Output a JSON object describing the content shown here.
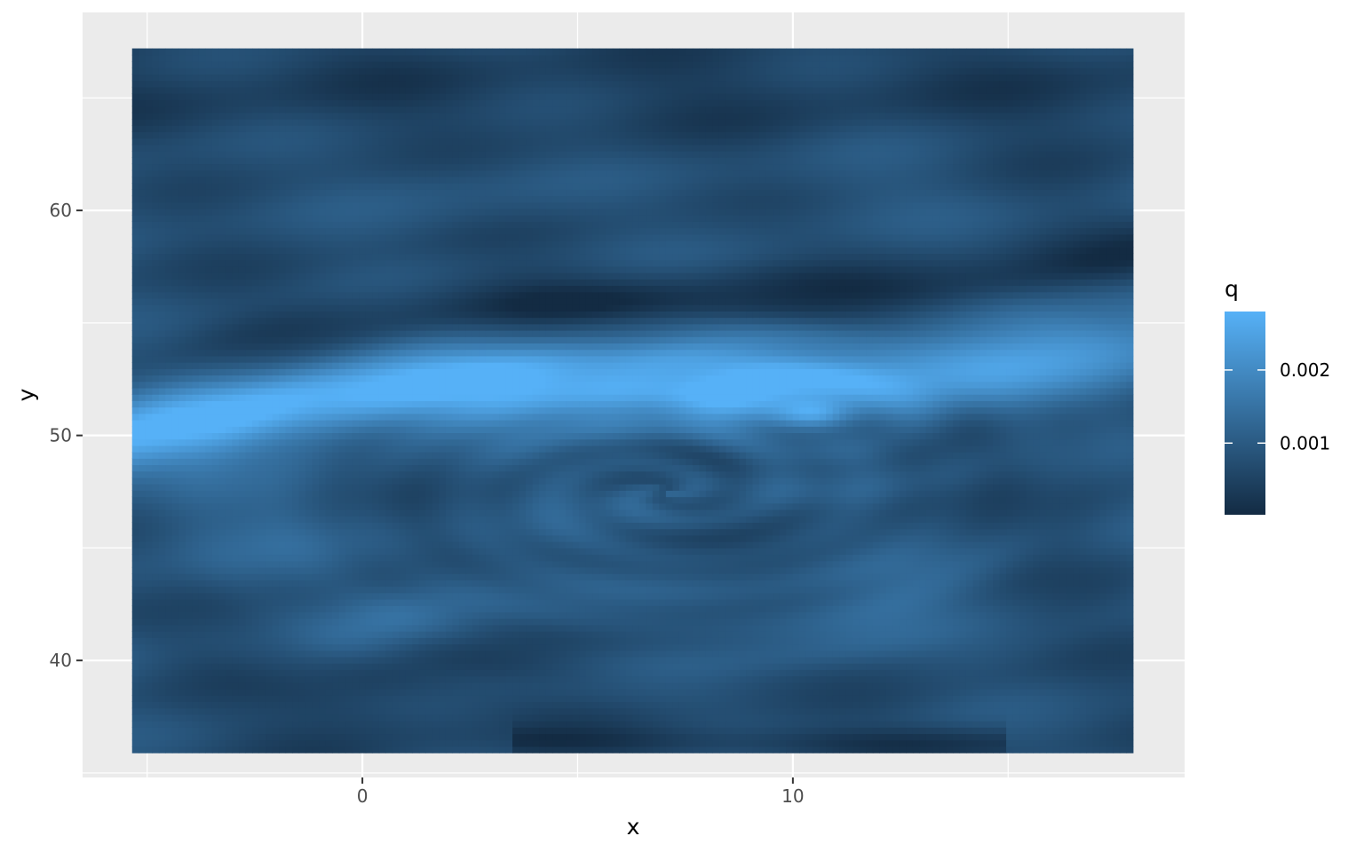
{
  "chart_data": {
    "type": "heatmap",
    "title": "",
    "xlabel": "x",
    "ylabel": "y",
    "xlim": [
      -6.5,
      19.1
    ],
    "ylim": [
      34.8,
      68.8
    ],
    "data_extent": {
      "x": [
        -5.35,
        17.9
      ],
      "y": [
        35.9,
        67.2
      ]
    },
    "x_ticks": [
      0,
      10
    ],
    "y_ticks": [
      40,
      50,
      60
    ],
    "x_tick_labels": [
      "0",
      "10"
    ],
    "y_tick_labels": [
      "40",
      "50",
      "60"
    ],
    "grid": true,
    "legend": {
      "title": "q",
      "placement": "right",
      "range": [
        2e-05,
        0.0028
      ],
      "ticks": [
        0.001,
        0.002
      ],
      "tick_labels": [
        "0.001",
        "0.002"
      ],
      "color_low": "#132B43",
      "color_high": "#56B1F7"
    },
    "colors": {
      "panel_background": "#EBEBEB",
      "grid_major": "#FFFFFF",
      "low": "#132B43",
      "high": "#56B1F7"
    },
    "features": [
      {
        "name": "main-filament",
        "description": "bright band of high q",
        "y_at_x_start": 50.0,
        "y_at_x_end": 54.5,
        "peak_q": 0.0027
      },
      {
        "name": "eddy",
        "center": [
          7.0,
          47.5
        ],
        "q": 0.0018
      },
      {
        "name": "lower-band",
        "y_at_x_start": 42.0,
        "y_at_x_end": 43.5,
        "q": 0.0016
      }
    ]
  }
}
